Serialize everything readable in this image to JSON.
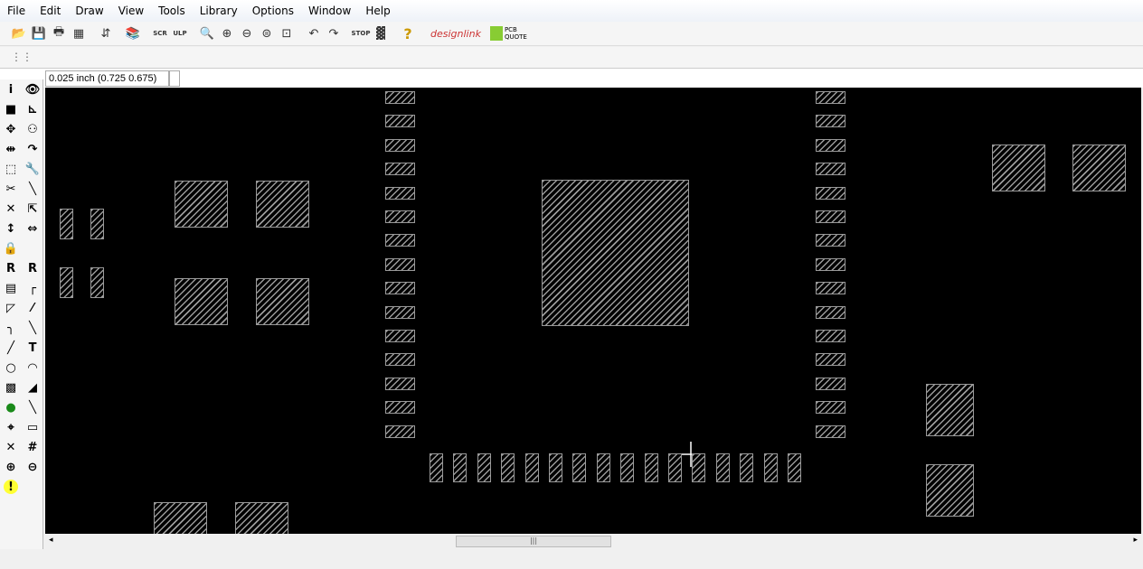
{
  "menu": [
    "File",
    "Edit",
    "Draw",
    "View",
    "Tools",
    "Library",
    "Options",
    "Window",
    "Help"
  ],
  "toolbar": [
    "open-icon",
    "save-icon",
    "print-icon",
    "cam-icon",
    "schematic-icon",
    "library-icon",
    "script-icon",
    "ulp-icon",
    "zoom-fit-icon",
    "zoom-in-icon",
    "zoom-out-icon",
    "zoom-redraw-icon",
    "zoom-select-icon",
    "undo-icon",
    "redo-icon",
    "stop-icon",
    "drc-icon",
    "help-icon"
  ],
  "toolbar_glyphs": [
    "📂",
    "💾",
    "🖶",
    "▦",
    "⇵",
    "📚",
    "SCR",
    "ULP",
    "🔍",
    "⊕",
    "⊖",
    "⊜",
    "⊡",
    "↶",
    "↷",
    "STOP",
    "▓",
    "?"
  ],
  "brand": {
    "designlink": "designlink",
    "pcbquote": "PCB QUOTE"
  },
  "coord": "0.025 inch (0.725 0.675)",
  "sidebar_glyphs": [
    "i",
    "👁",
    "■",
    "⊾",
    "✥",
    "⚇",
    "⇹",
    "↷",
    "⬚",
    "🔧",
    "✂",
    "╲",
    "✕",
    "⇱",
    "↕",
    "⇔",
    "🔒",
    "",
    "R",
    "R",
    "▤",
    "┌",
    "◸",
    "⁄",
    "╮",
    "╲",
    "╱",
    "T",
    "○",
    "◠",
    "▩",
    "◢",
    "●",
    "╲",
    "⌖",
    "▭",
    "✕",
    "#",
    "⊕",
    "⊖",
    "!",
    ""
  ],
  "colors": {
    "canvas": "#000000",
    "pad": "#9a9a9a"
  }
}
